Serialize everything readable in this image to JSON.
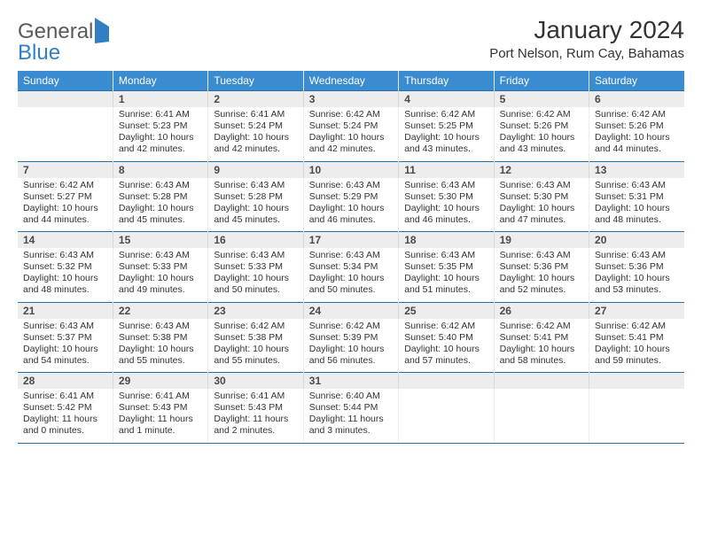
{
  "logo": {
    "word1": "General",
    "word2": "Blue"
  },
  "title": "January 2024",
  "location": "Port Nelson, Rum Cay, Bahamas",
  "colors": {
    "header_bar": "#3b8bd0",
    "header_rule": "#2a6ea6",
    "date_bg": "#ededed",
    "logo_blue": "#2f7fc2",
    "text": "#333333"
  },
  "daynames": [
    "Sunday",
    "Monday",
    "Tuesday",
    "Wednesday",
    "Thursday",
    "Friday",
    "Saturday"
  ],
  "weeks": [
    [
      {
        "date": "",
        "info": ""
      },
      {
        "date": "1",
        "info": "Sunrise: 6:41 AM\nSunset: 5:23 PM\nDaylight: 10 hours and 42 minutes."
      },
      {
        "date": "2",
        "info": "Sunrise: 6:41 AM\nSunset: 5:24 PM\nDaylight: 10 hours and 42 minutes."
      },
      {
        "date": "3",
        "info": "Sunrise: 6:42 AM\nSunset: 5:24 PM\nDaylight: 10 hours and 42 minutes."
      },
      {
        "date": "4",
        "info": "Sunrise: 6:42 AM\nSunset: 5:25 PM\nDaylight: 10 hours and 43 minutes."
      },
      {
        "date": "5",
        "info": "Sunrise: 6:42 AM\nSunset: 5:26 PM\nDaylight: 10 hours and 43 minutes."
      },
      {
        "date": "6",
        "info": "Sunrise: 6:42 AM\nSunset: 5:26 PM\nDaylight: 10 hours and 44 minutes."
      }
    ],
    [
      {
        "date": "7",
        "info": "Sunrise: 6:42 AM\nSunset: 5:27 PM\nDaylight: 10 hours and 44 minutes."
      },
      {
        "date": "8",
        "info": "Sunrise: 6:43 AM\nSunset: 5:28 PM\nDaylight: 10 hours and 45 minutes."
      },
      {
        "date": "9",
        "info": "Sunrise: 6:43 AM\nSunset: 5:28 PM\nDaylight: 10 hours and 45 minutes."
      },
      {
        "date": "10",
        "info": "Sunrise: 6:43 AM\nSunset: 5:29 PM\nDaylight: 10 hours and 46 minutes."
      },
      {
        "date": "11",
        "info": "Sunrise: 6:43 AM\nSunset: 5:30 PM\nDaylight: 10 hours and 46 minutes."
      },
      {
        "date": "12",
        "info": "Sunrise: 6:43 AM\nSunset: 5:30 PM\nDaylight: 10 hours and 47 minutes."
      },
      {
        "date": "13",
        "info": "Sunrise: 6:43 AM\nSunset: 5:31 PM\nDaylight: 10 hours and 48 minutes."
      }
    ],
    [
      {
        "date": "14",
        "info": "Sunrise: 6:43 AM\nSunset: 5:32 PM\nDaylight: 10 hours and 48 minutes."
      },
      {
        "date": "15",
        "info": "Sunrise: 6:43 AM\nSunset: 5:33 PM\nDaylight: 10 hours and 49 minutes."
      },
      {
        "date": "16",
        "info": "Sunrise: 6:43 AM\nSunset: 5:33 PM\nDaylight: 10 hours and 50 minutes."
      },
      {
        "date": "17",
        "info": "Sunrise: 6:43 AM\nSunset: 5:34 PM\nDaylight: 10 hours and 50 minutes."
      },
      {
        "date": "18",
        "info": "Sunrise: 6:43 AM\nSunset: 5:35 PM\nDaylight: 10 hours and 51 minutes."
      },
      {
        "date": "19",
        "info": "Sunrise: 6:43 AM\nSunset: 5:36 PM\nDaylight: 10 hours and 52 minutes."
      },
      {
        "date": "20",
        "info": "Sunrise: 6:43 AM\nSunset: 5:36 PM\nDaylight: 10 hours and 53 minutes."
      }
    ],
    [
      {
        "date": "21",
        "info": "Sunrise: 6:43 AM\nSunset: 5:37 PM\nDaylight: 10 hours and 54 minutes."
      },
      {
        "date": "22",
        "info": "Sunrise: 6:43 AM\nSunset: 5:38 PM\nDaylight: 10 hours and 55 minutes."
      },
      {
        "date": "23",
        "info": "Sunrise: 6:42 AM\nSunset: 5:38 PM\nDaylight: 10 hours and 55 minutes."
      },
      {
        "date": "24",
        "info": "Sunrise: 6:42 AM\nSunset: 5:39 PM\nDaylight: 10 hours and 56 minutes."
      },
      {
        "date": "25",
        "info": "Sunrise: 6:42 AM\nSunset: 5:40 PM\nDaylight: 10 hours and 57 minutes."
      },
      {
        "date": "26",
        "info": "Sunrise: 6:42 AM\nSunset: 5:41 PM\nDaylight: 10 hours and 58 minutes."
      },
      {
        "date": "27",
        "info": "Sunrise: 6:42 AM\nSunset: 5:41 PM\nDaylight: 10 hours and 59 minutes."
      }
    ],
    [
      {
        "date": "28",
        "info": "Sunrise: 6:41 AM\nSunset: 5:42 PM\nDaylight: 11 hours and 0 minutes."
      },
      {
        "date": "29",
        "info": "Sunrise: 6:41 AM\nSunset: 5:43 PM\nDaylight: 11 hours and 1 minute."
      },
      {
        "date": "30",
        "info": "Sunrise: 6:41 AM\nSunset: 5:43 PM\nDaylight: 11 hours and 2 minutes."
      },
      {
        "date": "31",
        "info": "Sunrise: 6:40 AM\nSunset: 5:44 PM\nDaylight: 11 hours and 3 minutes."
      },
      {
        "date": "",
        "info": ""
      },
      {
        "date": "",
        "info": ""
      },
      {
        "date": "",
        "info": ""
      }
    ]
  ]
}
